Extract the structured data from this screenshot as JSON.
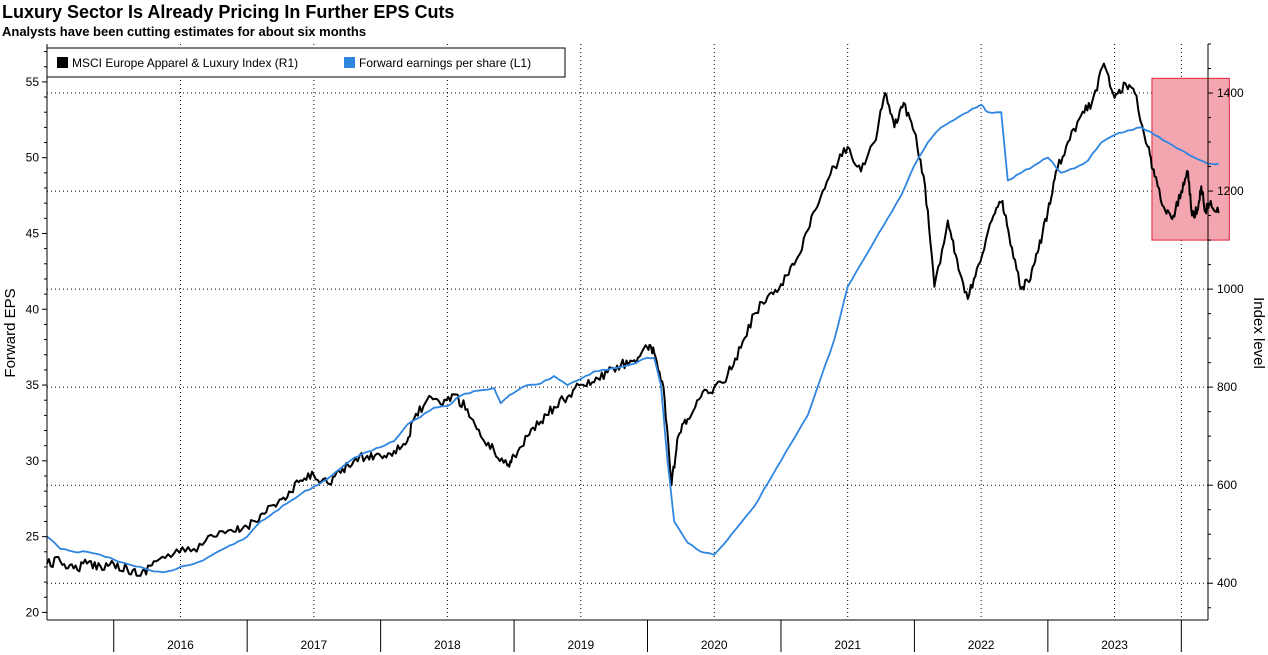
{
  "chart_data": {
    "type": "line",
    "title": "Luxury Sector Is Already Pricing In Further EPS Cuts",
    "subtitle": "Analysts have been cutting estimates for about six months",
    "ylabel_left": "Forward EPS",
    "ylabel_right": "Index level",
    "y_left_range": [
      19.5,
      57.5
    ],
    "y_left_ticks": [
      "20",
      "25",
      "30",
      "35",
      "40",
      "45",
      "50",
      "55"
    ],
    "y_right_range": [
      325,
      1500
    ],
    "y_right_ticks": [
      "400",
      "600",
      "800",
      "1000",
      "1200",
      "1400"
    ],
    "x_range": [
      2015.5,
      2024.2
    ],
    "x_ticks": [
      "2016",
      "2017",
      "2018",
      "2019",
      "2020",
      "2021",
      "2022",
      "2023"
    ],
    "grid": "dotted",
    "legend_position": "top-left",
    "colors": {
      "index": "#000000",
      "eps": "#2f86e0",
      "highlight_fill": "#f4a6b0",
      "highlight_stroke": "#e0233c"
    },
    "series": [
      {
        "name": "MSCI Europe Apparel & Luxury Index  (R1)",
        "axis": "right",
        "points": [
          [
            2015.5,
            440
          ],
          [
            2015.6,
            445
          ],
          [
            2015.7,
            430
          ],
          [
            2015.8,
            440
          ],
          [
            2015.9,
            435
          ],
          [
            2016.0,
            440
          ],
          [
            2016.1,
            430
          ],
          [
            2016.2,
            415
          ],
          [
            2016.3,
            445
          ],
          [
            2016.45,
            460
          ],
          [
            2016.6,
            470
          ],
          [
            2016.75,
            495
          ],
          [
            2016.9,
            505
          ],
          [
            2017.0,
            515
          ],
          [
            2017.1,
            540
          ],
          [
            2017.2,
            560
          ],
          [
            2017.3,
            575
          ],
          [
            2017.4,
            610
          ],
          [
            2017.5,
            620
          ],
          [
            2017.6,
            605
          ],
          [
            2017.7,
            625
          ],
          [
            2017.8,
            650
          ],
          [
            2017.9,
            660
          ],
          [
            2018.0,
            660
          ],
          [
            2018.1,
            670
          ],
          [
            2018.2,
            690
          ],
          [
            2018.25,
            735
          ],
          [
            2018.35,
            775
          ],
          [
            2018.45,
            765
          ],
          [
            2018.55,
            785
          ],
          [
            2018.65,
            755
          ],
          [
            2018.75,
            700
          ],
          [
            2018.85,
            670
          ],
          [
            2018.95,
            640
          ],
          [
            2019.0,
            660
          ],
          [
            2019.1,
            700
          ],
          [
            2019.2,
            730
          ],
          [
            2019.3,
            760
          ],
          [
            2019.4,
            780
          ],
          [
            2019.5,
            805
          ],
          [
            2019.6,
            810
          ],
          [
            2019.7,
            830
          ],
          [
            2019.8,
            845
          ],
          [
            2019.9,
            855
          ],
          [
            2020.0,
            880
          ],
          [
            2020.05,
            870
          ],
          [
            2020.12,
            800
          ],
          [
            2020.18,
            600
          ],
          [
            2020.23,
            700
          ],
          [
            2020.3,
            735
          ],
          [
            2020.4,
            780
          ],
          [
            2020.5,
            800
          ],
          [
            2020.6,
            825
          ],
          [
            2020.7,
            880
          ],
          [
            2020.8,
            950
          ],
          [
            2020.9,
            985
          ],
          [
            2021.0,
            1010
          ],
          [
            2021.1,
            1050
          ],
          [
            2021.2,
            1120
          ],
          [
            2021.3,
            1190
          ],
          [
            2021.4,
            1250
          ],
          [
            2021.5,
            1290
          ],
          [
            2021.6,
            1240
          ],
          [
            2021.7,
            1300
          ],
          [
            2021.78,
            1400
          ],
          [
            2021.85,
            1330
          ],
          [
            2021.92,
            1380
          ],
          [
            2022.0,
            1320
          ],
          [
            2022.08,
            1210
          ],
          [
            2022.15,
            1005
          ],
          [
            2022.25,
            1140
          ],
          [
            2022.32,
            1060
          ],
          [
            2022.4,
            980
          ],
          [
            2022.48,
            1050
          ],
          [
            2022.58,
            1140
          ],
          [
            2022.66,
            1180
          ],
          [
            2022.72,
            1090
          ],
          [
            2022.8,
            1000
          ],
          [
            2022.87,
            1020
          ],
          [
            2022.93,
            1080
          ],
          [
            2023.0,
            1160
          ],
          [
            2023.06,
            1240
          ],
          [
            2023.15,
            1300
          ],
          [
            2023.25,
            1355
          ],
          [
            2023.33,
            1380
          ],
          [
            2023.42,
            1460
          ],
          [
            2023.5,
            1390
          ],
          [
            2023.58,
            1420
          ],
          [
            2023.65,
            1400
          ],
          [
            2023.75,
            1290
          ],
          [
            2023.8,
            1230
          ],
          [
            2023.88,
            1160
          ],
          [
            2023.94,
            1150
          ],
          [
            2024.0,
            1200
          ],
          [
            2024.05,
            1240
          ],
          [
            2024.08,
            1150
          ],
          [
            2024.12,
            1160
          ],
          [
            2024.15,
            1210
          ],
          [
            2024.18,
            1160
          ],
          [
            2024.22,
            1180
          ],
          [
            2024.28,
            1155
          ]
        ]
      },
      {
        "name": "Forward earnings per share (L1)",
        "axis": "left",
        "points": [
          [
            2015.5,
            25.0
          ],
          [
            2015.6,
            24.2
          ],
          [
            2015.7,
            24.0
          ],
          [
            2015.8,
            24.0
          ],
          [
            2015.9,
            23.8
          ],
          [
            2016.0,
            23.5
          ],
          [
            2016.1,
            23.2
          ],
          [
            2016.2,
            23.0
          ],
          [
            2016.3,
            22.7
          ],
          [
            2016.4,
            22.7
          ],
          [
            2016.5,
            23.0
          ],
          [
            2016.6,
            23.2
          ],
          [
            2016.7,
            23.6
          ],
          [
            2016.8,
            24.1
          ],
          [
            2016.9,
            24.5
          ],
          [
            2017.0,
            25.0
          ],
          [
            2017.1,
            26.0
          ],
          [
            2017.2,
            26.6
          ],
          [
            2017.3,
            27.2
          ],
          [
            2017.4,
            27.8
          ],
          [
            2017.5,
            28.3
          ],
          [
            2017.6,
            28.8
          ],
          [
            2017.7,
            29.5
          ],
          [
            2017.8,
            30.2
          ],
          [
            2017.9,
            30.6
          ],
          [
            2018.0,
            30.9
          ],
          [
            2018.1,
            31.3
          ],
          [
            2018.2,
            32.4
          ],
          [
            2018.3,
            32.9
          ],
          [
            2018.4,
            33.5
          ],
          [
            2018.5,
            33.6
          ],
          [
            2018.6,
            34.3
          ],
          [
            2018.7,
            34.6
          ],
          [
            2018.85,
            34.8
          ],
          [
            2018.9,
            33.8
          ],
          [
            2018.95,
            34.2
          ],
          [
            2019.0,
            34.5
          ],
          [
            2019.1,
            35.0
          ],
          [
            2019.2,
            35.1
          ],
          [
            2019.3,
            35.6
          ],
          [
            2019.4,
            35.0
          ],
          [
            2019.5,
            35.4
          ],
          [
            2019.6,
            35.9
          ],
          [
            2019.7,
            36.0
          ],
          [
            2019.8,
            36.2
          ],
          [
            2019.9,
            36.4
          ],
          [
            2020.0,
            36.8
          ],
          [
            2020.05,
            36.8
          ],
          [
            2020.1,
            35.0
          ],
          [
            2020.15,
            30.0
          ],
          [
            2020.2,
            26.0
          ],
          [
            2020.3,
            24.6
          ],
          [
            2020.4,
            24.0
          ],
          [
            2020.5,
            23.8
          ],
          [
            2020.6,
            24.8
          ],
          [
            2020.7,
            25.9
          ],
          [
            2020.8,
            27.0
          ],
          [
            2020.9,
            28.5
          ],
          [
            2021.0,
            30.0
          ],
          [
            2021.1,
            31.5
          ],
          [
            2021.2,
            33.0
          ],
          [
            2021.3,
            35.5
          ],
          [
            2021.4,
            38.0
          ],
          [
            2021.5,
            41.5
          ],
          [
            2021.6,
            43.0
          ],
          [
            2021.7,
            44.5
          ],
          [
            2021.8,
            46.0
          ],
          [
            2021.9,
            47.5
          ],
          [
            2022.0,
            49.5
          ],
          [
            2022.1,
            51.0
          ],
          [
            2022.2,
            52.0
          ],
          [
            2022.3,
            52.5
          ],
          [
            2022.4,
            53.0
          ],
          [
            2022.5,
            53.5
          ],
          [
            2022.55,
            53.0
          ],
          [
            2022.65,
            53.0
          ],
          [
            2022.7,
            48.5
          ],
          [
            2022.8,
            49.0
          ],
          [
            2022.9,
            49.5
          ],
          [
            2023.0,
            50.0
          ],
          [
            2023.1,
            49.0
          ],
          [
            2023.2,
            49.3
          ],
          [
            2023.3,
            49.8
          ],
          [
            2023.4,
            51.0
          ],
          [
            2023.5,
            51.5
          ],
          [
            2023.6,
            51.8
          ],
          [
            2023.7,
            52.0
          ],
          [
            2023.8,
            51.5
          ],
          [
            2023.9,
            51.0
          ],
          [
            2024.0,
            50.5
          ],
          [
            2024.1,
            50.0
          ],
          [
            2024.2,
            49.6
          ],
          [
            2024.28,
            49.6
          ]
        ]
      }
    ],
    "highlight": {
      "x_range": [
        2023.78,
        2024.36
      ],
      "y_right_range": [
        1100,
        1430
      ]
    }
  }
}
